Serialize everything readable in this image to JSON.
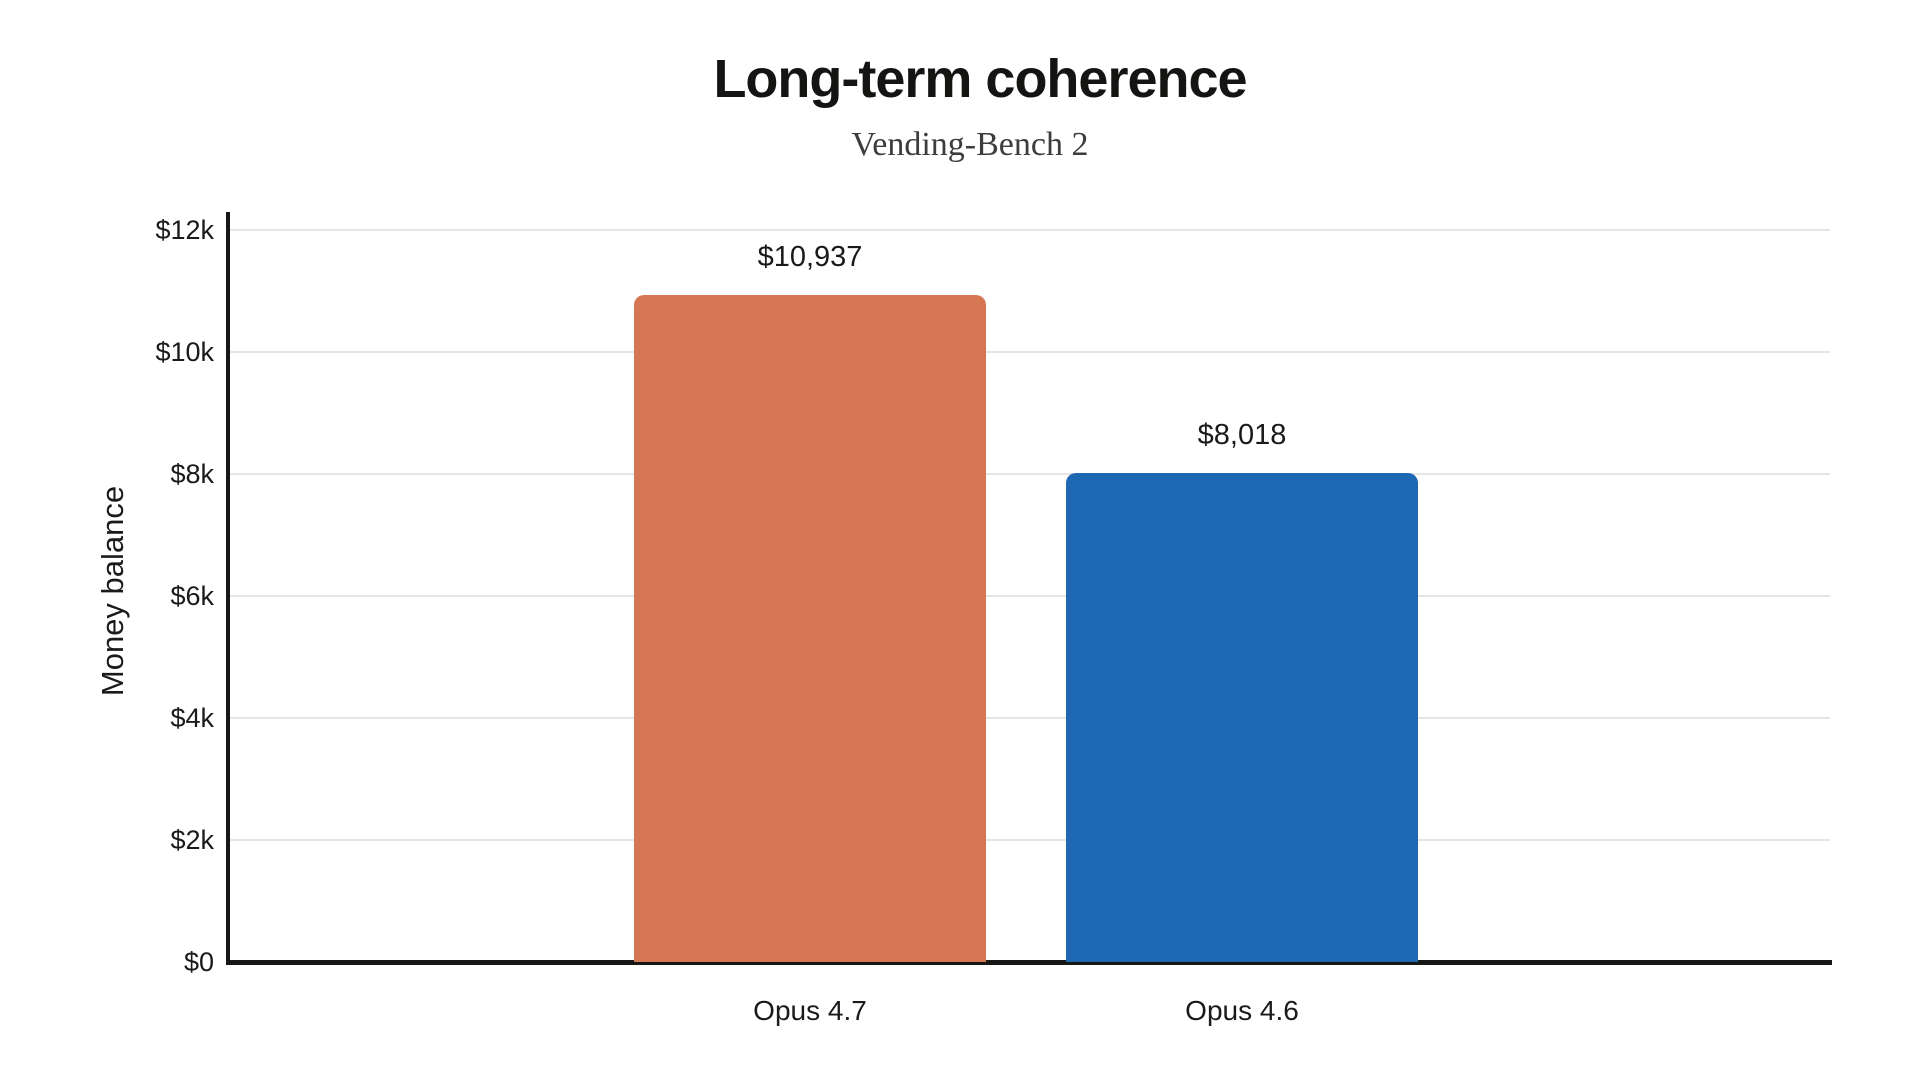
{
  "chart_data": {
    "type": "bar",
    "title": "Long-term coherence",
    "subtitle": "Vending-Bench 2",
    "xlabel": "",
    "ylabel": "Money balance",
    "categories": [
      "Opus 4.7",
      "Opus 4.6"
    ],
    "values": [
      10937,
      8018
    ],
    "value_labels": [
      "$10,937",
      "$8,018"
    ],
    "bar_colors": [
      "#d57754",
      "#1e67b2"
    ],
    "ylim": [
      0,
      12000
    ],
    "ytick_interval": 2000,
    "yticks": [
      0,
      2000,
      4000,
      6000,
      8000,
      10000,
      12000
    ],
    "ytick_labels": [
      "$0",
      "$2k",
      "$4k",
      "$6k",
      "$8k",
      "$10k",
      "$12k"
    ],
    "grid": true,
    "legend_position": "none",
    "colors": {
      "background": "#ffffff",
      "axis": "#171715",
      "gridline": "#e7e5e2",
      "title_text": "#141413",
      "subtitle_text": "#3d3d3b",
      "tick_text": "#1a1a18"
    }
  }
}
